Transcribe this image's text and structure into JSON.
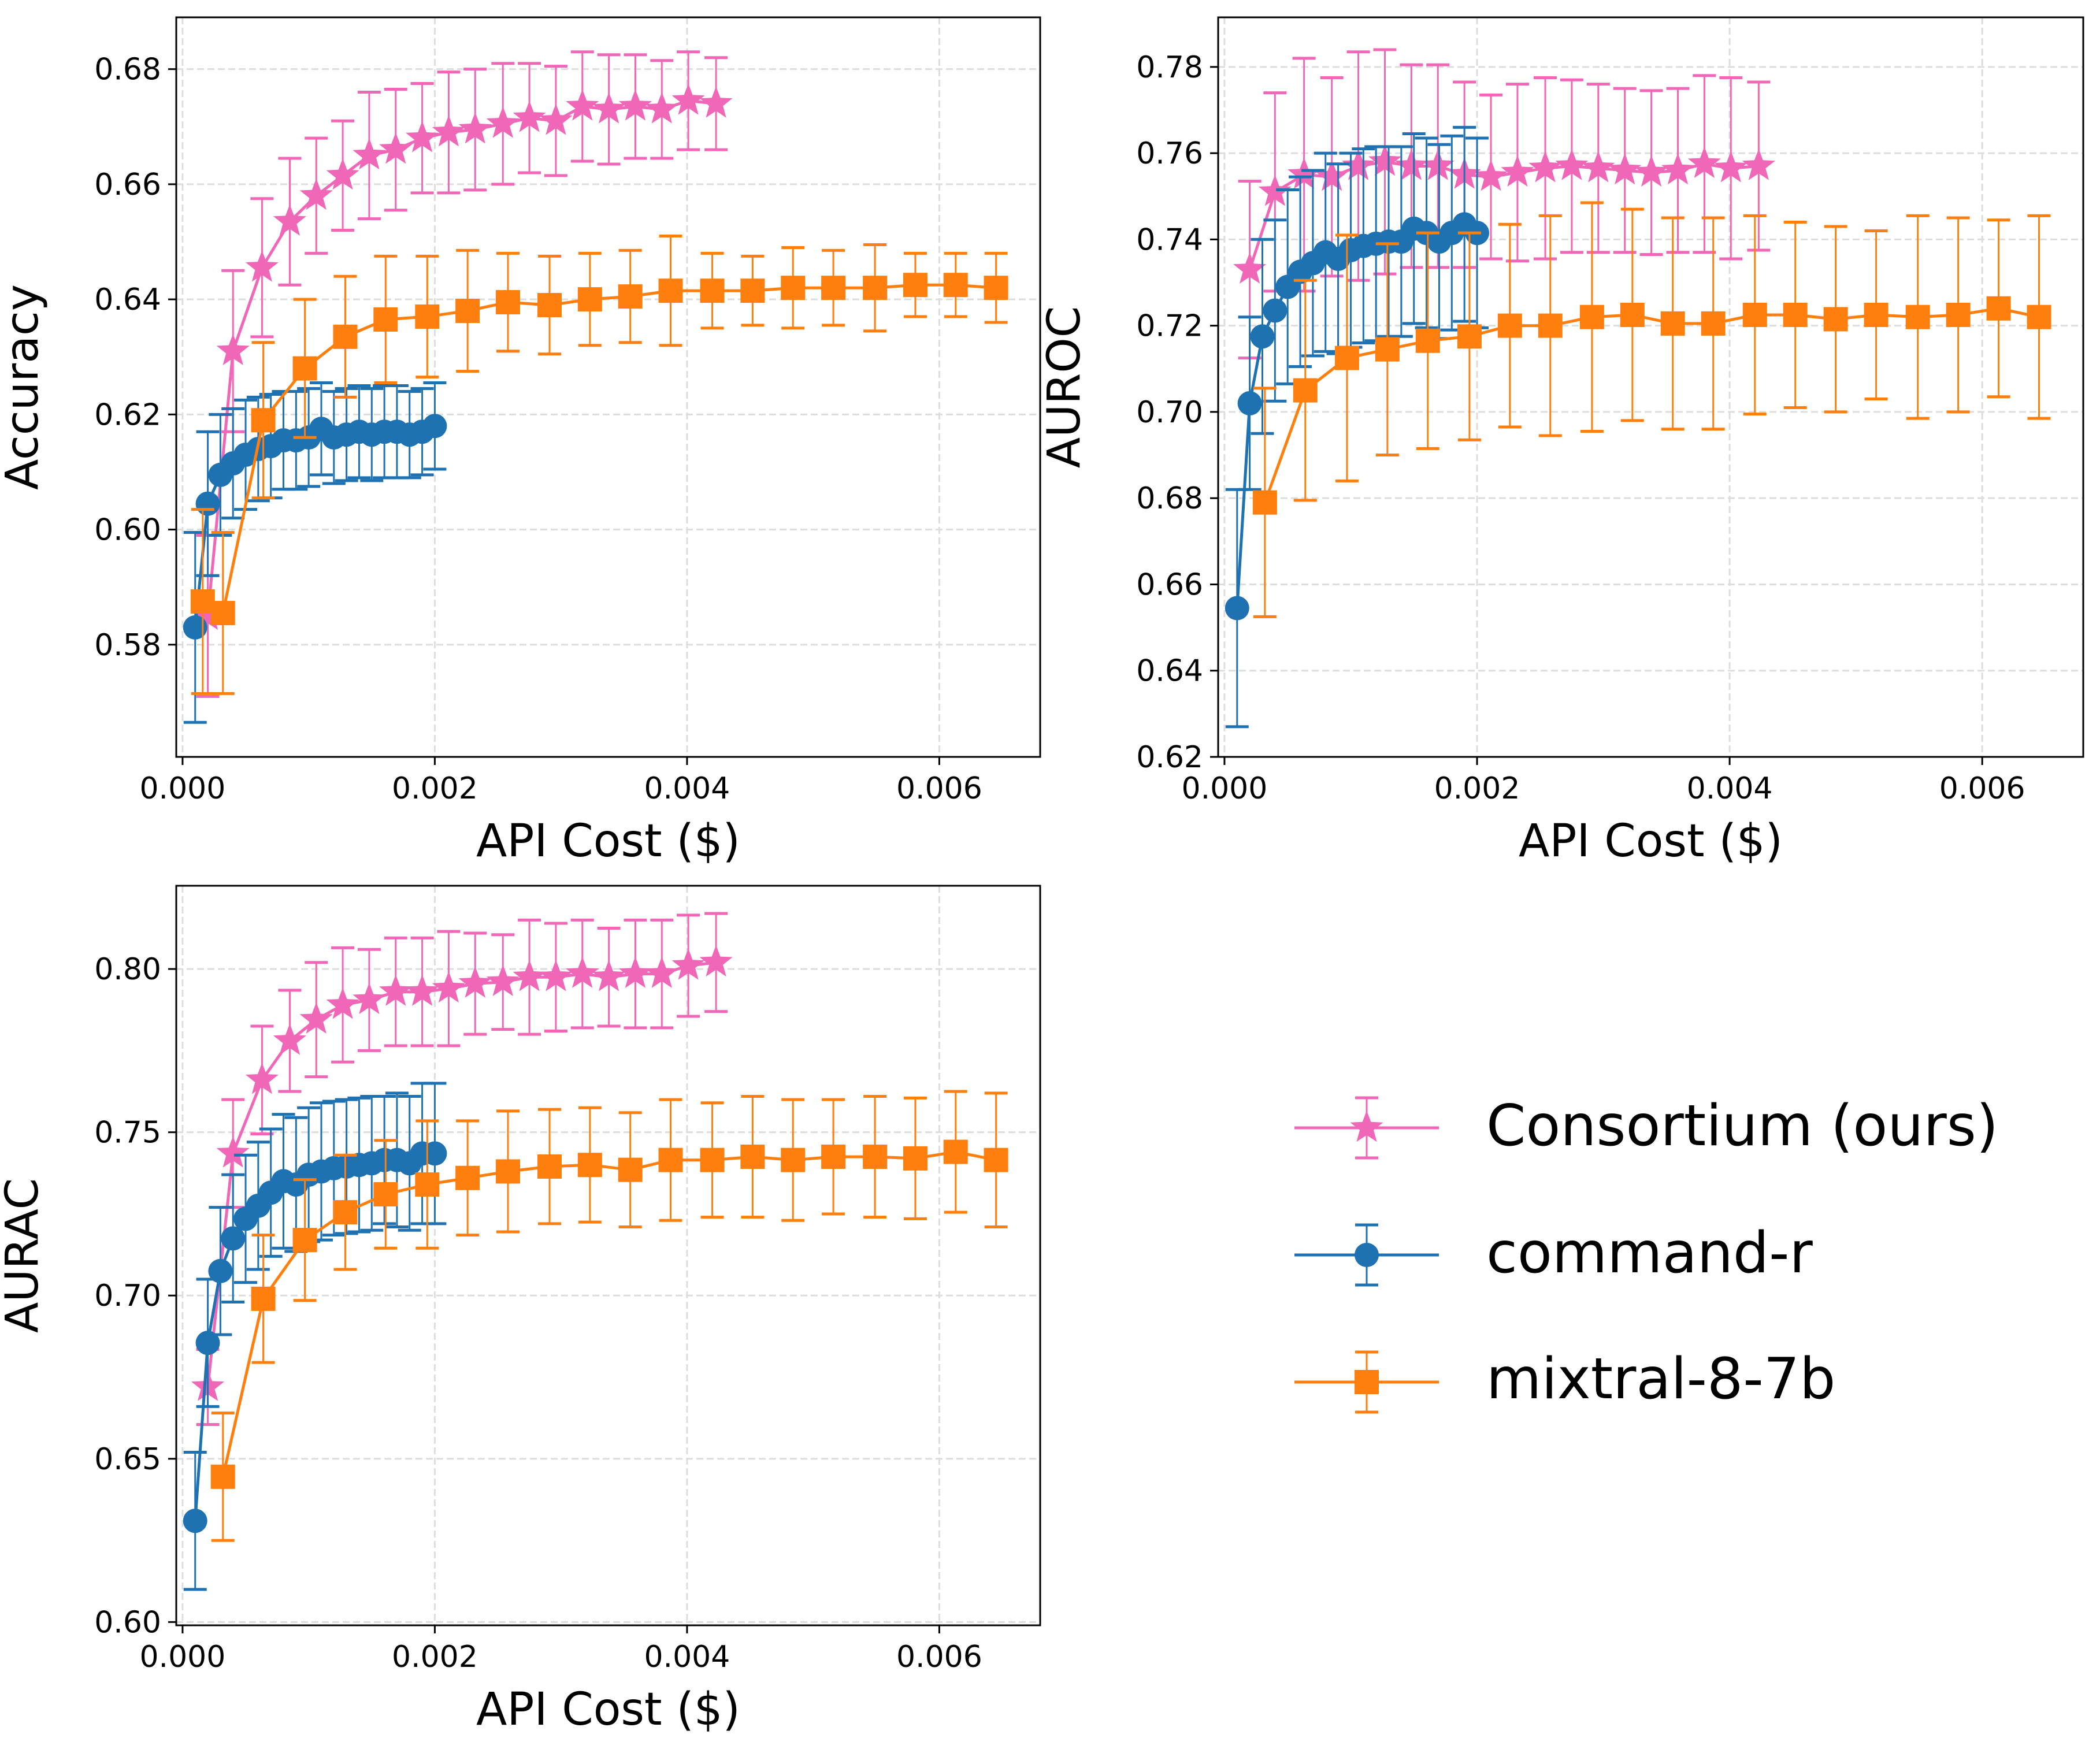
{
  "colors": {
    "consortium": "#f067b8",
    "command_r": "#1f72b2",
    "mixtral": "#ff7f0e",
    "grid": "#dddddd"
  },
  "legend": {
    "items": [
      {
        "key": "consortium",
        "label": "Consortium (ours)",
        "marker": "star"
      },
      {
        "key": "command_r",
        "label": "command-r",
        "marker": "circle"
      },
      {
        "key": "mixtral",
        "label": "mixtral-8-7b",
        "marker": "square"
      }
    ]
  },
  "chart_data": [
    {
      "type": "line",
      "id": "accuracy",
      "xlabel": "API Cost ($)",
      "ylabel": "Accuracy",
      "xlim": [
        -5e-05,
        0.0068
      ],
      "ylim": [
        0.5605,
        0.689
      ],
      "xticks": [
        0.0,
        0.002,
        0.004,
        0.006
      ],
      "xtick_labels": [
        "0.000",
        "0.002",
        "0.004",
        "0.006"
      ],
      "yticks": [
        0.58,
        0.6,
        0.62,
        0.64,
        0.66,
        0.68
      ],
      "ytick_labels": [
        "0.58",
        "0.60",
        "0.62",
        "0.64",
        "0.66",
        "0.68"
      ],
      "grid": true,
      "series": [
        {
          "name": "Consortium (ours)",
          "key": "consortium",
          "marker": "star",
          "x": [
            0.0002,
            0.0004,
            0.00063,
            0.00085,
            0.00106,
            0.00127,
            0.00148,
            0.00169,
            0.0019,
            0.00211,
            0.00232,
            0.00254,
            0.00275,
            0.00296,
            0.00317,
            0.00338,
            0.00359,
            0.0038,
            0.00401,
            0.00423
          ],
          "y": [
            0.585,
            0.631,
            0.6455,
            0.6535,
            0.658,
            0.6615,
            0.665,
            0.666,
            0.668,
            0.669,
            0.6695,
            0.6705,
            0.6715,
            0.671,
            0.6735,
            0.673,
            0.6735,
            0.673,
            0.6745,
            0.674
          ],
          "err": [
            0.014,
            0.014,
            0.012,
            0.011,
            0.01,
            0.0095,
            0.011,
            0.0105,
            0.0095,
            0.0105,
            0.0105,
            0.0105,
            0.0095,
            0.0095,
            0.0095,
            0.0095,
            0.009,
            0.0085,
            0.0085,
            0.008
          ]
        },
        {
          "name": "command-r",
          "key": "command_r",
          "marker": "circle",
          "x": [
            0.0001,
            0.0002,
            0.0003,
            0.0004,
            0.0005,
            0.0006,
            0.0007,
            0.0008,
            0.0009,
            0.001,
            0.0011,
            0.0012,
            0.0013,
            0.0014,
            0.0015,
            0.0016,
            0.0017,
            0.0018,
            0.0019,
            0.002
          ],
          "y": [
            0.583,
            0.6045,
            0.6095,
            0.6115,
            0.613,
            0.614,
            0.6145,
            0.6155,
            0.6155,
            0.616,
            0.6175,
            0.616,
            0.6165,
            0.617,
            0.6165,
            0.617,
            0.617,
            0.6165,
            0.617,
            0.618
          ],
          "err": [
            0.0165,
            0.0125,
            0.0105,
            0.0095,
            0.0095,
            0.009,
            0.009,
            0.0085,
            0.0085,
            0.0085,
            0.008,
            0.008,
            0.008,
            0.008,
            0.008,
            0.008,
            0.008,
            0.0075,
            0.0075,
            0.0075
          ]
        },
        {
          "name": "mixtral-8-7b",
          "key": "mixtral",
          "marker": "square",
          "x": [
            0.00016,
            0.00032,
            0.00064,
            0.00097,
            0.00129,
            0.00161,
            0.00194,
            0.00226,
            0.00258,
            0.00291,
            0.00323,
            0.00355,
            0.00387,
            0.0042,
            0.00452,
            0.00484,
            0.00516,
            0.00549,
            0.00581,
            0.00613,
            0.00645
          ],
          "y": [
            0.5875,
            0.5855,
            0.619,
            0.628,
            0.6335,
            0.6365,
            0.637,
            0.638,
            0.6395,
            0.639,
            0.64,
            0.6405,
            0.6415,
            0.6415,
            0.6415,
            0.642,
            0.642,
            0.642,
            0.6425,
            0.6425,
            0.642
          ],
          "err": [
            0.016,
            0.014,
            0.0135,
            0.012,
            0.0105,
            0.011,
            0.0105,
            0.0105,
            0.0085,
            0.0085,
            0.008,
            0.008,
            0.0095,
            0.0065,
            0.006,
            0.007,
            0.0065,
            0.0075,
            0.0055,
            0.0055,
            0.006
          ]
        }
      ]
    },
    {
      "type": "line",
      "id": "auroc",
      "xlabel": "API Cost ($)",
      "ylabel": "AUROC",
      "xlim": [
        -5e-05,
        0.0068
      ],
      "ylim": [
        0.62,
        0.7915
      ],
      "xticks": [
        0.0,
        0.002,
        0.004,
        0.006
      ],
      "xtick_labels": [
        "0.000",
        "0.002",
        "0.004",
        "0.006"
      ],
      "yticks": [
        0.62,
        0.64,
        0.66,
        0.68,
        0.7,
        0.72,
        0.74,
        0.76,
        0.78
      ],
      "ytick_labels": [
        "0.62",
        "0.64",
        "0.66",
        "0.68",
        "0.70",
        "0.72",
        "0.74",
        "0.76",
        "0.78"
      ],
      "grid": true,
      "series": [
        {
          "name": "Consortium (ours)",
          "key": "consortium",
          "marker": "star",
          "x": [
            0.0002,
            0.0004,
            0.00063,
            0.00085,
            0.00106,
            0.00127,
            0.00148,
            0.00169,
            0.0019,
            0.00211,
            0.00232,
            0.00254,
            0.00275,
            0.00296,
            0.00317,
            0.00338,
            0.00359,
            0.0038,
            0.00401,
            0.00423
          ],
          "y": [
            0.733,
            0.751,
            0.755,
            0.7545,
            0.757,
            0.758,
            0.757,
            0.757,
            0.755,
            0.7545,
            0.7555,
            0.7565,
            0.757,
            0.7565,
            0.756,
            0.7555,
            0.756,
            0.7575,
            0.7565,
            0.757
          ],
          "err": [
            0.0205,
            0.023,
            0.027,
            0.023,
            0.0265,
            0.026,
            0.0235,
            0.0235,
            0.0215,
            0.019,
            0.0205,
            0.021,
            0.02,
            0.0195,
            0.019,
            0.019,
            0.019,
            0.0205,
            0.021,
            0.0195
          ]
        },
        {
          "name": "command-r",
          "key": "command_r",
          "marker": "circle",
          "x": [
            0.0001,
            0.0002,
            0.0003,
            0.0004,
            0.0005,
            0.0006,
            0.0007,
            0.0008,
            0.0009,
            0.001,
            0.0011,
            0.0012,
            0.0013,
            0.0014,
            0.0015,
            0.0016,
            0.0017,
            0.0018,
            0.0019,
            0.002
          ],
          "y": [
            0.6545,
            0.702,
            0.7175,
            0.7235,
            0.729,
            0.7325,
            0.7345,
            0.737,
            0.7355,
            0.7375,
            0.7385,
            0.739,
            0.7395,
            0.7395,
            0.7425,
            0.7415,
            0.7395,
            0.7415,
            0.7435,
            0.7415
          ],
          "err": [
            0.0275,
            0.02,
            0.0225,
            0.021,
            0.0225,
            0.022,
            0.0215,
            0.023,
            0.022,
            0.0225,
            0.0225,
            0.0225,
            0.022,
            0.022,
            0.022,
            0.022,
            0.0225,
            0.0225,
            0.0225,
            0.022
          ]
        },
        {
          "name": "mixtral-8-7b",
          "key": "mixtral",
          "marker": "square",
          "x": [
            0.00032,
            0.00064,
            0.00097,
            0.00129,
            0.00161,
            0.00194,
            0.00226,
            0.00258,
            0.00291,
            0.00323,
            0.00355,
            0.00387,
            0.0042,
            0.00452,
            0.00484,
            0.00516,
            0.00549,
            0.00581,
            0.00613,
            0.00645
          ],
          "y": [
            0.679,
            0.705,
            0.7125,
            0.7145,
            0.7165,
            0.7175,
            0.72,
            0.72,
            0.722,
            0.7225,
            0.7205,
            0.7205,
            0.7225,
            0.7225,
            0.7215,
            0.7225,
            0.722,
            0.7225,
            0.724,
            0.722
          ],
          "err": [
            0.0265,
            0.0255,
            0.0285,
            0.0245,
            0.025,
            0.024,
            0.0235,
            0.0255,
            0.0265,
            0.0245,
            0.0245,
            0.0245,
            0.023,
            0.0215,
            0.0215,
            0.0195,
            0.0235,
            0.0225,
            0.0205,
            0.0235
          ]
        }
      ]
    },
    {
      "type": "line",
      "id": "aurac",
      "xlabel": "API Cost ($)",
      "ylabel": "AURAC",
      "xlim": [
        -5e-05,
        0.0068
      ],
      "ylim": [
        0.599,
        0.8255
      ],
      "xticks": [
        0.0,
        0.002,
        0.004,
        0.006
      ],
      "xtick_labels": [
        "0.000",
        "0.002",
        "0.004",
        "0.006"
      ],
      "yticks": [
        0.6,
        0.65,
        0.7,
        0.75,
        0.8
      ],
      "ytick_labels": [
        "0.60",
        "0.65",
        "0.70",
        "0.75",
        "0.80"
      ],
      "grid": true,
      "series": [
        {
          "name": "Consortium (ours)",
          "key": "consortium",
          "marker": "star",
          "x": [
            0.0002,
            0.0004,
            0.00063,
            0.00085,
            0.00106,
            0.00127,
            0.00148,
            0.00169,
            0.0019,
            0.00211,
            0.00232,
            0.00254,
            0.00275,
            0.00296,
            0.00317,
            0.00338,
            0.00359,
            0.0038,
            0.00401,
            0.00423
          ],
          "y": [
            0.672,
            0.7435,
            0.766,
            0.778,
            0.7845,
            0.789,
            0.7905,
            0.793,
            0.793,
            0.794,
            0.7955,
            0.796,
            0.7975,
            0.7975,
            0.7985,
            0.7975,
            0.7985,
            0.7985,
            0.801,
            0.802
          ],
          "err": [
            0.0115,
            0.0165,
            0.0165,
            0.0155,
            0.0175,
            0.0175,
            0.0155,
            0.0165,
            0.0165,
            0.0175,
            0.0155,
            0.0145,
            0.0175,
            0.0165,
            0.0165,
            0.015,
            0.0165,
            0.0165,
            0.0155,
            0.015
          ]
        },
        {
          "name": "command-r",
          "key": "command_r",
          "marker": "circle",
          "x": [
            0.0001,
            0.0002,
            0.0003,
            0.0004,
            0.0005,
            0.0006,
            0.0007,
            0.0008,
            0.0009,
            0.001,
            0.0011,
            0.0012,
            0.0013,
            0.0014,
            0.0015,
            0.0016,
            0.0017,
            0.0018,
            0.0019,
            0.002
          ],
          "y": [
            0.631,
            0.6855,
            0.7075,
            0.7175,
            0.7235,
            0.7275,
            0.7315,
            0.735,
            0.734,
            0.737,
            0.738,
            0.739,
            0.7395,
            0.74,
            0.7405,
            0.7415,
            0.7415,
            0.7405,
            0.7435,
            0.7435
          ],
          "err": [
            0.021,
            0.0195,
            0.0195,
            0.0195,
            0.0195,
            0.0195,
            0.0195,
            0.0205,
            0.0205,
            0.0205,
            0.021,
            0.0205,
            0.0205,
            0.0205,
            0.0205,
            0.0195,
            0.0205,
            0.0205,
            0.0215,
            0.0215
          ]
        },
        {
          "name": "mixtral-8-7b",
          "key": "mixtral",
          "marker": "square",
          "x": [
            0.00032,
            0.00064,
            0.00097,
            0.00129,
            0.00161,
            0.00194,
            0.00226,
            0.00258,
            0.00291,
            0.00323,
            0.00355,
            0.00387,
            0.0042,
            0.00452,
            0.00484,
            0.00516,
            0.00549,
            0.00581,
            0.00613,
            0.00645
          ],
          "y": [
            0.6445,
            0.699,
            0.717,
            0.7255,
            0.731,
            0.734,
            0.736,
            0.738,
            0.7395,
            0.74,
            0.7385,
            0.7415,
            0.7415,
            0.7425,
            0.7415,
            0.7425,
            0.7425,
            0.742,
            0.744,
            0.7415
          ],
          "err": [
            0.0195,
            0.0195,
            0.0185,
            0.0175,
            0.0165,
            0.0195,
            0.0175,
            0.0185,
            0.0175,
            0.0175,
            0.0175,
            0.0185,
            0.0175,
            0.0185,
            0.0185,
            0.0175,
            0.0185,
            0.0185,
            0.0185,
            0.0205
          ]
        }
      ]
    }
  ]
}
